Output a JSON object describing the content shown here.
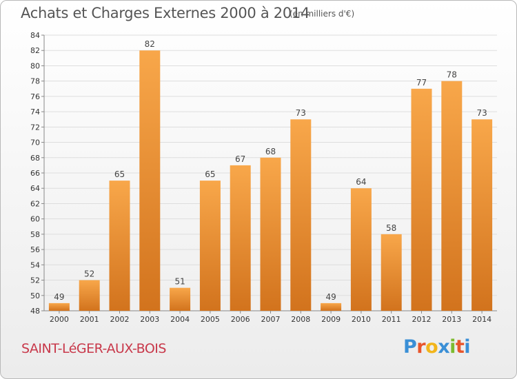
{
  "header": {
    "title": "Achats et Charges Externes 2000 à 2014",
    "subtitle": "(en milliers d'€)"
  },
  "footer": {
    "commune": "SAINT-LéGER-AUX-BOIS",
    "logo": "Proxiti",
    "logo_colors": [
      "#3a8fd6",
      "#e8552b",
      "#f2b51b",
      "#3a8fd6",
      "#7dbb2f",
      "#e8552b",
      "#3a8fd6"
    ]
  },
  "chart_data": {
    "type": "bar",
    "categories": [
      "2000",
      "2001",
      "2002",
      "2003",
      "2004",
      "2005",
      "2006",
      "2007",
      "2008",
      "2009",
      "2010",
      "2011",
      "2012",
      "2013",
      "2014"
    ],
    "values": [
      49,
      52,
      65,
      82,
      51,
      65,
      67,
      68,
      73,
      49,
      64,
      58,
      77,
      78,
      73
    ],
    "value_labels": [
      "49",
      "52",
      "65",
      "82",
      "51",
      "65",
      "67",
      "68",
      "73",
      "49",
      "64",
      "58",
      "77",
      "78",
      "73"
    ],
    "title": "Achats et Charges Externes 2000 à 2014",
    "ylim": [
      48,
      84
    ],
    "yticks": [
      48,
      50,
      52,
      54,
      56,
      58,
      60,
      62,
      64,
      66,
      68,
      70,
      72,
      74,
      76,
      78,
      80,
      82,
      84
    ],
    "grid": true,
    "bar_color_light": "#f8a74a",
    "bar_color_dark": "#d2731d"
  }
}
